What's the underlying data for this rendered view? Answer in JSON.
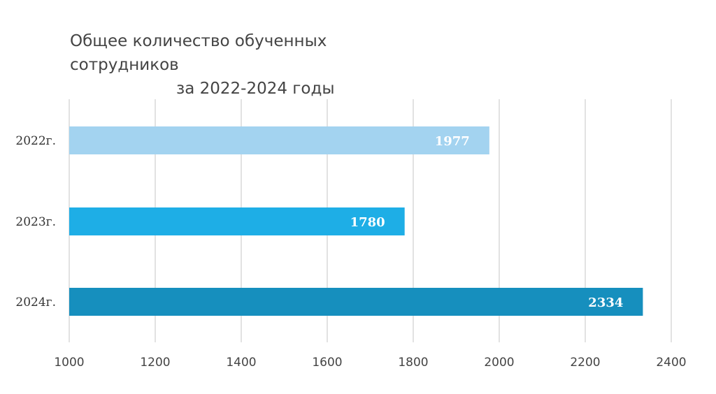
{
  "chart_data": {
    "type": "bar",
    "orientation": "horizontal",
    "title_line1": "Общее количество обученных сотрудников",
    "title_line2": "за 2022-2024 годы",
    "categories": [
      "2022г.",
      "2023г.",
      "2024г."
    ],
    "values": [
      1977,
      1780,
      2334
    ],
    "data_labels": [
      "1977",
      "1780",
      "2334"
    ],
    "colors": [
      "#A3D3F0",
      "#1EAEE6",
      "#168FBE"
    ],
    "xlim": [
      1000,
      2400
    ],
    "xticks": [
      1000,
      1200,
      1400,
      1600,
      1800,
      2000,
      2200,
      2400
    ],
    "xtick_labels": [
      "1000",
      "1200",
      "1400",
      "1600",
      "1800",
      "2000",
      "2200",
      "2400"
    ],
    "grid": "vertical",
    "legend": "none"
  }
}
